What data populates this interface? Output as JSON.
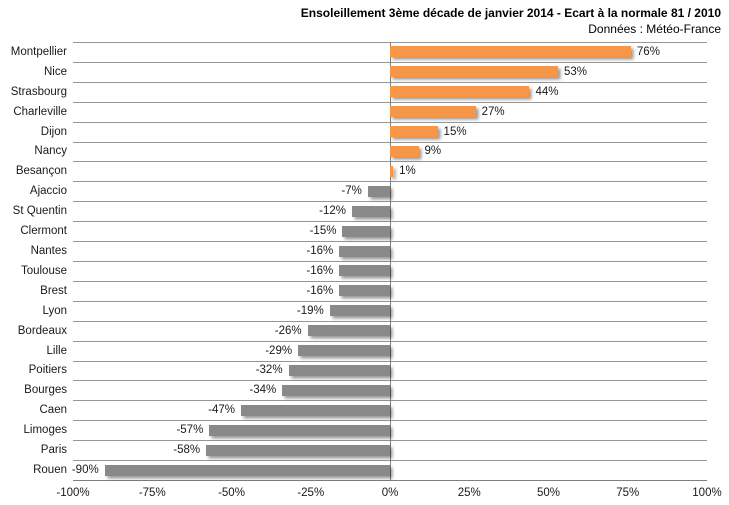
{
  "header": {
    "title": "Ensoleillement 3ème décade de janvier 2014 - Ecart à la normale 81 / 2010",
    "subtitle": "Données : Météo-France"
  },
  "chart_data": {
    "type": "bar",
    "orientation": "horizontal",
    "title": "Ensoleillement 3ème décade de janvier 2014 - Ecart à la normale 81 / 2010",
    "subtitle": "Données : Météo-France",
    "categories": [
      "Montpellier",
      "Nice",
      "Strasbourg",
      "Charleville",
      "Dijon",
      "Nancy",
      "Besançon",
      "Ajaccio",
      "St Quentin",
      "Clermont",
      "Nantes",
      "Toulouse",
      "Brest",
      "Lyon",
      "Bordeaux",
      "Lille",
      "Poitiers",
      "Bourges",
      "Caen",
      "Limoges",
      "Paris",
      "Rouen"
    ],
    "values": [
      76,
      53,
      44,
      27,
      15,
      9,
      1,
      -7,
      -12,
      -15,
      -16,
      -16,
      -16,
      -19,
      -26,
      -29,
      -32,
      -34,
      -47,
      -57,
      -58,
      -90
    ],
    "value_labels": [
      "76%",
      "53%",
      "44%",
      "27%",
      "15%",
      "9%",
      "1%",
      "-7%",
      "-12%",
      "-15%",
      "-16%",
      "-16%",
      "-16%",
      "-19%",
      "-26%",
      "-29%",
      "-32%",
      "-34%",
      "-47%",
      "-57%",
      "-58%",
      "-90%"
    ],
    "xlabel": "",
    "ylabel": "",
    "xlim": [
      -100,
      100
    ],
    "x_ticks": [
      "-100%",
      "-75%",
      "-50%",
      "-25%",
      "0%",
      "25%",
      "50%",
      "75%",
      "100%"
    ],
    "x_tick_values": [
      -100,
      -75,
      -50,
      -25,
      0,
      25,
      50,
      75,
      100
    ],
    "grid": "horizontal category separator lines, vertical zero line",
    "legend": "none",
    "colors": {
      "positive_bar": "#F79646",
      "negative_bar": "#898989",
      "gridline": "#969696",
      "axis_line": "#808080",
      "zero_line": "#808080",
      "text": "#1a1a1a",
      "title_text": "#000000",
      "background": "#ffffff"
    }
  }
}
